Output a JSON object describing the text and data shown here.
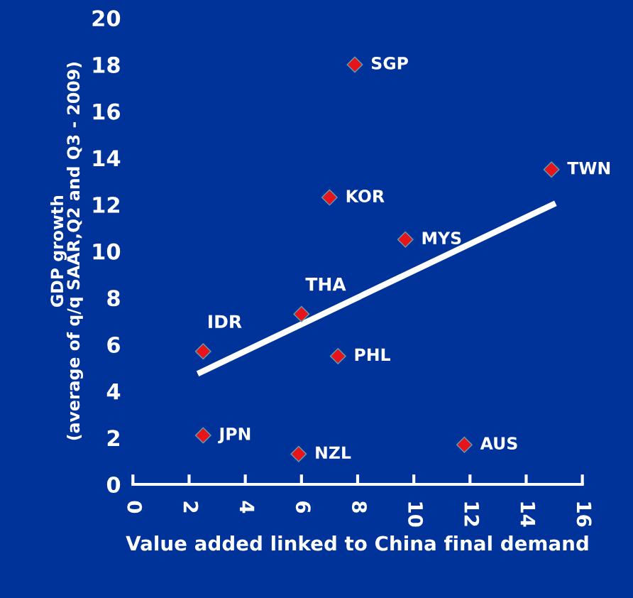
{
  "chart_data": {
    "type": "scatter",
    "xlabel": "Value added linked to China final demand",
    "ylabel": "GDP growth\n(average of q/q SAAR,Q2 and Q3 - 2009)",
    "xlim": [
      0,
      16
    ],
    "xticks": [
      0,
      2,
      4,
      6,
      8,
      10,
      12,
      14,
      16
    ],
    "ylim": [
      0,
      20
    ],
    "yticks": [
      0,
      2,
      4,
      6,
      8,
      10,
      12,
      14,
      16,
      18,
      20
    ],
    "grid": false,
    "series": [
      {
        "marker": "diamond",
        "color": "#e8141c",
        "x": [
          7.9,
          14.9,
          7.0,
          9.7,
          6.0,
          2.5,
          7.3,
          2.5,
          5.9,
          11.8
        ],
        "values": [
          18.0,
          13.5,
          12.3,
          10.5,
          7.3,
          5.7,
          5.5,
          2.1,
          1.3,
          1.7
        ]
      },
      {
        "type": "line",
        "color": "#ffffff",
        "x": [
          2.4,
          14.95
        ],
        "values": [
          4.8,
          12.0
        ]
      }
    ],
    "annotations": [
      {
        "text": "SGP",
        "x": 7.9,
        "y": 18.0
      },
      {
        "text": "TWN",
        "x": 14.9,
        "y": 13.5
      },
      {
        "text": "KOR",
        "x": 7.0,
        "y": 12.3
      },
      {
        "text": "MYS",
        "x": 9.7,
        "y": 10.5
      },
      {
        "text": "THA",
        "x": 6.0,
        "y": 7.3
      },
      {
        "text": "IDR",
        "x": 2.5,
        "y": 5.7
      },
      {
        "text": "PHL",
        "x": 7.3,
        "y": 5.5
      },
      {
        "text": "JPN",
        "x": 2.5,
        "y": 2.1
      },
      {
        "text": "NZL",
        "x": 5.9,
        "y": 1.3
      },
      {
        "text": "AUS",
        "x": 11.8,
        "y": 1.7
      }
    ]
  }
}
